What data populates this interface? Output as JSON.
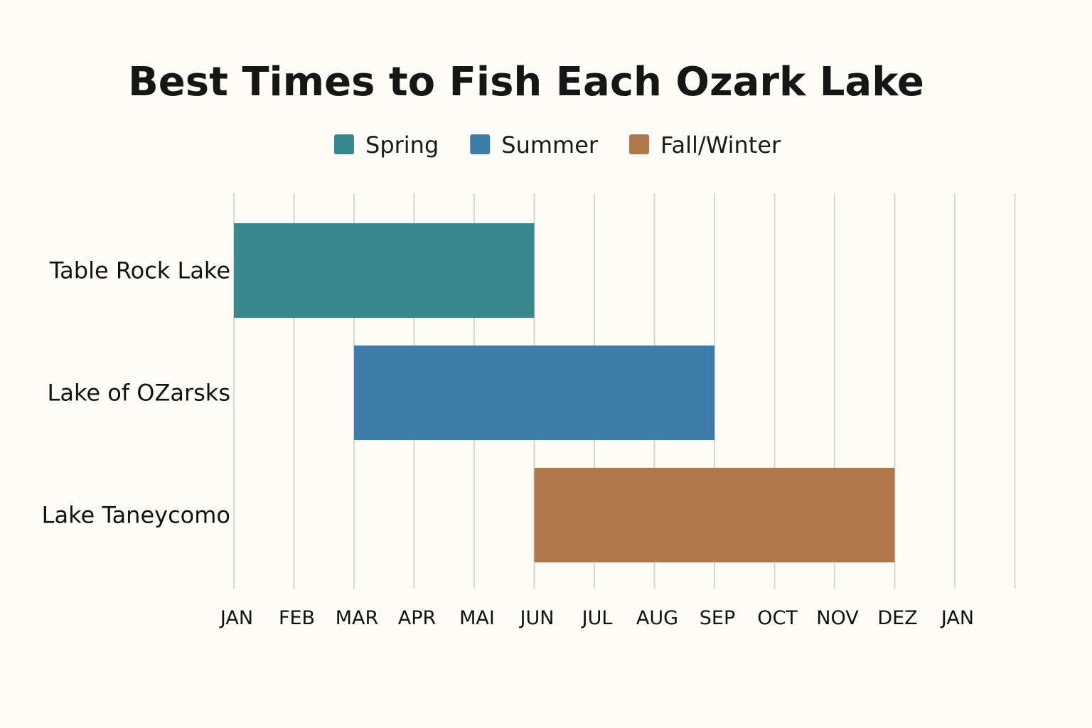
{
  "chart_data": {
    "type": "bar",
    "orientation": "horizontal-range",
    "title": "Best Times to Fish Each Ozark Lake",
    "xlabel": "",
    "ylabel": "",
    "grid": "vertical",
    "legend_placement": "top-center",
    "x_ticks": [
      "JAN",
      "FEB",
      "MAR",
      "APR",
      "MAI",
      "JUN",
      "JUL",
      "AUG",
      "SEP",
      "OCT",
      "NOV",
      "DEZ",
      "JAN"
    ],
    "xlim": [
      0,
      13
    ],
    "categories": [
      "Table Rock Lake",
      "Lake of OZarsks",
      "Lake Taneycomo"
    ],
    "series": [
      {
        "name": "Spring",
        "color": "#368a8e",
        "category_index": 0,
        "start": 0,
        "end": 5
      },
      {
        "name": "Summer",
        "color": "#3e7ca8",
        "category_index": 1,
        "start": 2,
        "end": 8
      },
      {
        "name": "Fall/Winter",
        "color": "#b0774d",
        "category_index": 2,
        "start": 5,
        "end": 11
      }
    ]
  }
}
